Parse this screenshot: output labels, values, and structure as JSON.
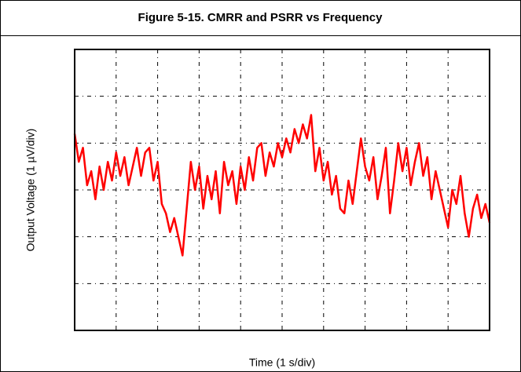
{
  "chart_data": {
    "type": "line",
    "title": "Figure 5-15. CMRR and PSRR vs Frequency",
    "x_label": "Time (1 s/div)",
    "y_label": "Output Voltage (1 µV/div)",
    "xlim": [
      0,
      10
    ],
    "xticks": [
      0,
      1,
      2,
      3,
      4,
      5,
      6,
      7,
      8,
      9,
      10
    ],
    "ylim": [
      -3,
      3
    ],
    "yticks": [
      -3,
      -2,
      -1,
      0,
      1,
      2,
      3
    ],
    "grid": true,
    "x": [
      0,
      0.1,
      0.2,
      0.3,
      0.4,
      0.5,
      0.6,
      0.7,
      0.8,
      0.9,
      1,
      1.1,
      1.2,
      1.3,
      1.4,
      1.5,
      1.6,
      1.7,
      1.8,
      1.9,
      2,
      2.1,
      2.2,
      2.3,
      2.4,
      2.5,
      2.6,
      2.7,
      2.8,
      2.9,
      3,
      3.1,
      3.2,
      3.3,
      3.4,
      3.5,
      3.6,
      3.7,
      3.8,
      3.9,
      4,
      4.1,
      4.2,
      4.3,
      4.4,
      4.5,
      4.6,
      4.7,
      4.8,
      4.9,
      5,
      5.1,
      5.2,
      5.3,
      5.4,
      5.5,
      5.6,
      5.7,
      5.8,
      5.9,
      6,
      6.1,
      6.2,
      6.3,
      6.4,
      6.5,
      6.6,
      6.7,
      6.8,
      6.9,
      7,
      7.1,
      7.2,
      7.3,
      7.4,
      7.5,
      7.6,
      7.7,
      7.8,
      7.9,
      8,
      8.1,
      8.2,
      8.3,
      8.4,
      8.5,
      8.6,
      8.7,
      8.8,
      8.9,
      9,
      9.1,
      9.2,
      9.3,
      9.4,
      9.5,
      9.6,
      9.7,
      9.8,
      9.9,
      10
    ],
    "series": [
      {
        "color": "#ff0000",
        "values": [
          1.2,
          0.6,
          0.9,
          0.1,
          0.4,
          -0.2,
          0.5,
          0.0,
          0.6,
          0.2,
          0.8,
          0.3,
          0.7,
          0.1,
          0.5,
          0.9,
          0.3,
          0.8,
          0.9,
          0.2,
          0.6,
          -0.3,
          -0.5,
          -0.9,
          -0.6,
          -1.0,
          -1.4,
          -0.4,
          0.6,
          0.0,
          0.5,
          -0.4,
          0.3,
          -0.2,
          0.4,
          -0.5,
          0.6,
          0.1,
          0.4,
          -0.3,
          0.5,
          0.0,
          0.7,
          0.2,
          0.9,
          1.0,
          0.3,
          0.8,
          0.5,
          1.0,
          0.7,
          1.1,
          0.8,
          1.3,
          1.0,
          1.4,
          1.1,
          1.6,
          0.4,
          0.9,
          0.2,
          0.6,
          -0.1,
          0.3,
          -0.4,
          -0.5,
          0.2,
          -0.3,
          0.4,
          1.1,
          0.5,
          0.2,
          0.7,
          -0.2,
          0.3,
          0.9,
          -0.5,
          0.2,
          1.0,
          0.4,
          0.9,
          0.1,
          0.6,
          1.0,
          0.3,
          0.7,
          -0.2,
          0.4,
          0.0,
          -0.4,
          -0.8,
          0.0,
          -0.3,
          0.3,
          -0.5,
          -1.0,
          -0.4,
          -0.1,
          -0.6,
          -0.3,
          -0.7
        ]
      }
    ]
  }
}
